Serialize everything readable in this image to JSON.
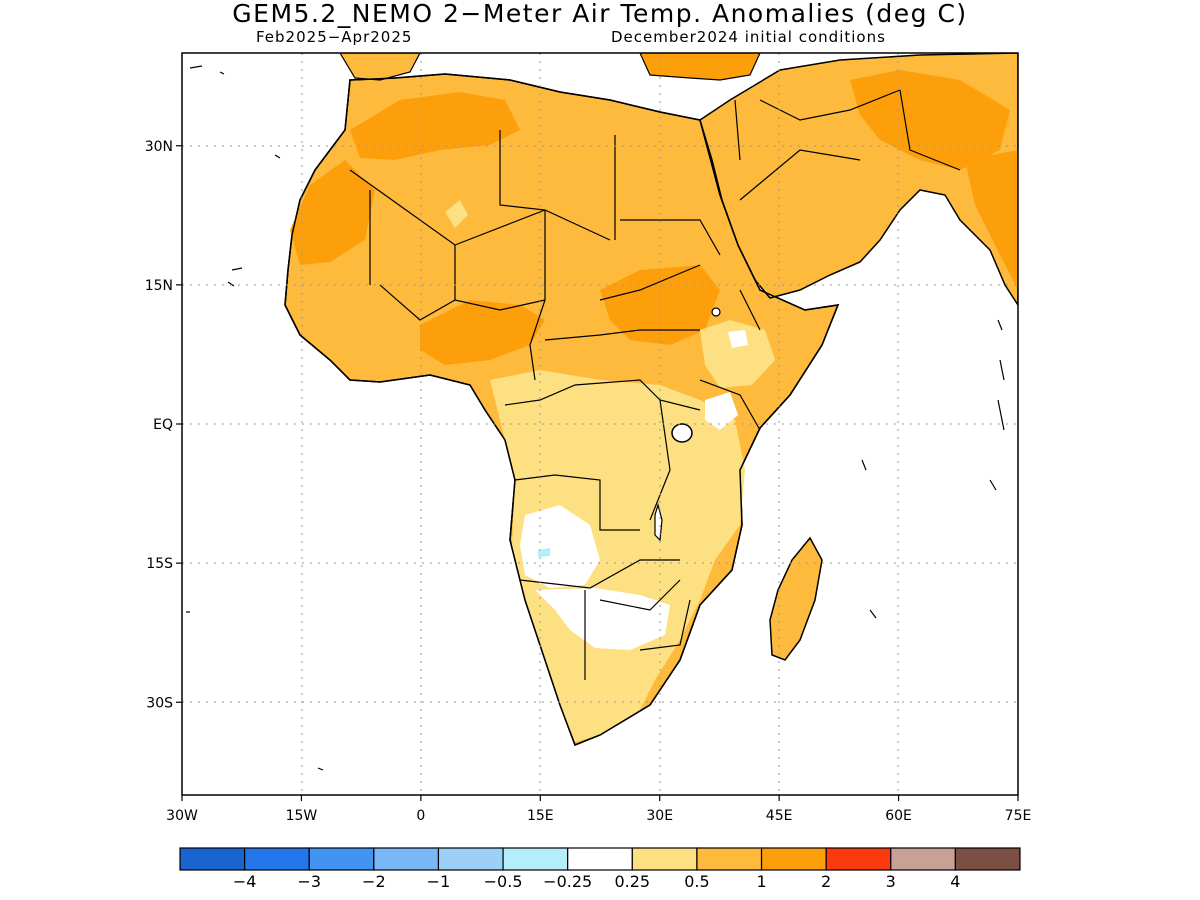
{
  "figure": {
    "title": "GEM5.2_NEMO 2−Meter Air Temp. Anomalies (deg C)",
    "valid_period": "Feb2025−Apr2025",
    "initial_conditions": "December2024 initial conditions"
  },
  "map_axes": {
    "lon_range": [
      -30,
      75
    ],
    "lat_range": [
      -40,
      40
    ],
    "lon_ticks": [
      {
        "value": -30,
        "label": "30W"
      },
      {
        "value": -15,
        "label": "15W"
      },
      {
        "value": 0,
        "label": "0"
      },
      {
        "value": 15,
        "label": "15E"
      },
      {
        "value": 30,
        "label": "30E"
      },
      {
        "value": 45,
        "label": "45E"
      },
      {
        "value": 60,
        "label": "60E"
      },
      {
        "value": 75,
        "label": "75E"
      }
    ],
    "lat_ticks": [
      {
        "value": 30,
        "label": "30N"
      },
      {
        "value": 15,
        "label": "15N"
      },
      {
        "value": 0,
        "label": "EQ"
      },
      {
        "value": -15,
        "label": "15S"
      },
      {
        "value": -30,
        "label": "30S"
      }
    ],
    "gridlines": "dotted"
  },
  "colorbar": {
    "colors": [
      "#1a64d0",
      "#2377ea",
      "#4294f0",
      "#79b7f7",
      "#9cd0f8",
      "#b3eefa",
      "#ffffff",
      "#fde081",
      "#fdba3c",
      "#fd9f0b",
      "#fb3a10",
      "#c8a096",
      "#7b4f43"
    ],
    "labels": [
      "−4",
      "−3",
      "−2",
      "−1",
      "−0.5",
      "−0.25",
      "0.25",
      "0.5",
      "1",
      "2",
      "3",
      "4"
    ]
  },
  "colors": {
    "ocean": "#ffffff",
    "coast": "#000000",
    "anomaly_0_25_to_0_5": "#fde081",
    "anomaly_0_5_to_1": "#fdba3c",
    "anomaly_1_to_2": "#fd9f0b",
    "anomaly_neutral": "#ffffff"
  }
}
